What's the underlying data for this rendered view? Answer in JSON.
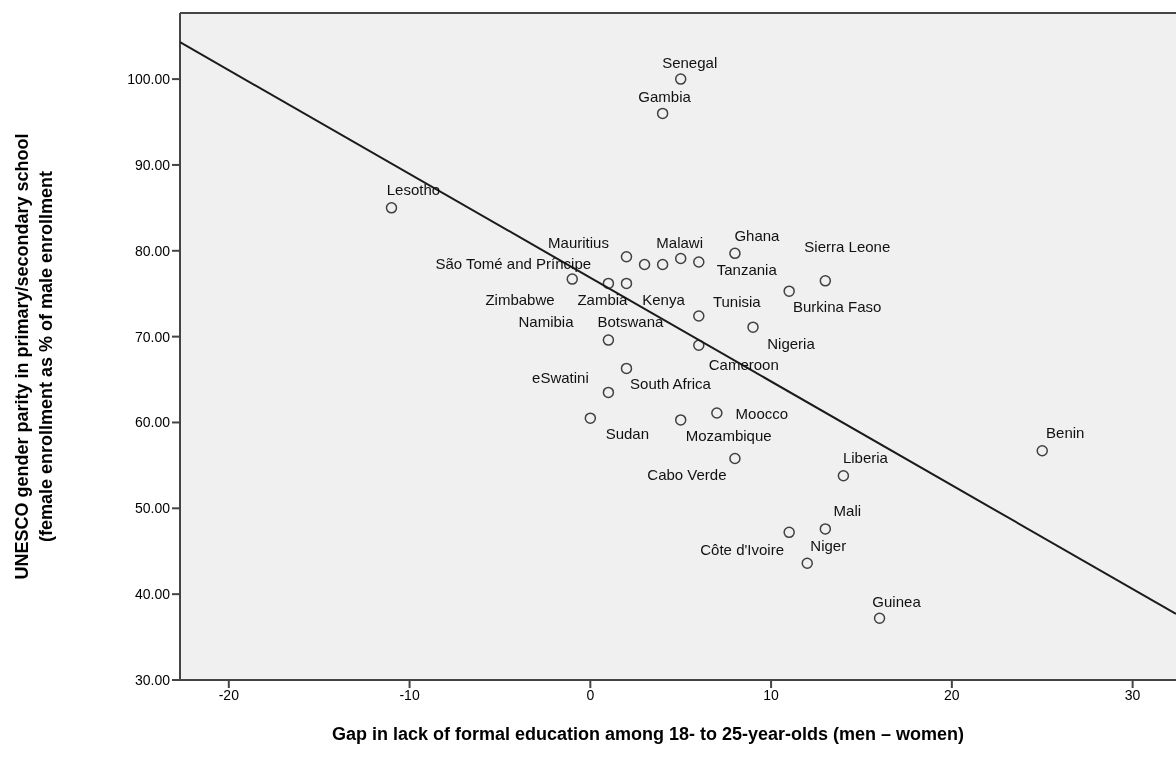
{
  "chart_data": {
    "type": "scatter",
    "xlabel": "Gap in lack of formal education among 18- to 25-year-olds (men – women)",
    "ylabel": "UNESCO gender parity in primary/secondary school\n(female enrollment as % of male enrollment",
    "xlim": [
      -22.7,
      32.4
    ],
    "ylim": [
      30,
      107.7
    ],
    "xticks": [
      -20,
      -10,
      0,
      10,
      20,
      30
    ],
    "yticks": [
      {
        "value": 30,
        "label": "30.00"
      },
      {
        "value": 40,
        "label": "40.00"
      },
      {
        "value": 50,
        "label": "50.00"
      },
      {
        "value": 60,
        "label": "60.00"
      },
      {
        "value": 70,
        "label": "70.00"
      },
      {
        "value": 80,
        "label": "80.00"
      },
      {
        "value": 90,
        "label": "90.00"
      },
      {
        "value": 100,
        "label": "100.00"
      }
    ],
    "series": [
      {
        "color": "#404040",
        "marker": "circle",
        "x": [
          5,
          4,
          -11,
          2,
          3,
          4,
          5,
          6,
          8,
          13,
          11,
          6,
          9,
          6,
          -1,
          1,
          2,
          1,
          2,
          1,
          0,
          5,
          7,
          8,
          14,
          13,
          11,
          12,
          16,
          25
        ],
        "values": [
          100,
          96,
          85,
          79.3,
          78.4,
          78.4,
          79.1,
          78.7,
          79.7,
          76.5,
          75.3,
          72.4,
          71.1,
          69,
          76.7,
          76.2,
          76.2,
          69.6,
          66.3,
          63.5,
          60.5,
          60.3,
          61.1,
          55.8,
          53.8,
          47.6,
          47.2,
          43.6,
          37.2,
          56.7
        ]
      },
      {
        "type": "line",
        "color": "#1a1a1a",
        "marker": "none",
        "x": [
          -22.7,
          32.4
        ],
        "values": [
          104.3,
          37.7
        ]
      }
    ],
    "annotations": [
      {
        "text": "Senegal",
        "x": 5,
        "y": 100
      },
      {
        "text": "Gambia",
        "x": 4,
        "y": 96
      },
      {
        "text": "Lesotho",
        "x": -11,
        "y": 85
      },
      {
        "text": "Mauritius",
        "x": 2,
        "y": 79.3
      },
      "Zimbabwe",
      "Namibia",
      {
        "text": "Malawi",
        "x": 5,
        "y": 79.1
      },
      {
        "text": "Tanzania",
        "x": 6,
        "y": 78.7
      },
      {
        "text": "Ghana",
        "x": 8,
        "y": 79.7
      },
      {
        "text": "Sierra Leone",
        "x": 13,
        "y": 76.5
      },
      {
        "text": "Burkina Faso",
        "x": 11,
        "y": 75.3
      },
      {
        "text": "Tunisia",
        "x": 6,
        "y": 72.4
      },
      {
        "text": "Nigeria",
        "x": 9,
        "y": 71.1
      },
      {
        "text": "Cameroon",
        "x": 6,
        "y": 69
      },
      {
        "text": "São Tomé and Príncipe",
        "x": -1,
        "y": 76.7
      },
      {
        "text": "Zambia",
        "x": 1,
        "y": 76.2
      },
      {
        "text": "Kenya",
        "x": 2,
        "y": 76.2
      },
      {
        "text": "Botswana",
        "x": 1,
        "y": 69.6
      },
      {
        "text": "South Africa",
        "x": 2,
        "y": 66.3
      },
      {
        "text": "eSwatini",
        "x": 1,
        "y": 63.5
      },
      {
        "text": "Sudan",
        "x": 0,
        "y": 60.5
      },
      {
        "text": "Mozambique",
        "x": 5,
        "y": 60.3
      },
      {
        "text": "Moocco",
        "x": 7,
        "y": 61.1
      },
      {
        "text": "Cabo Verde",
        "x": 8,
        "y": 55.8
      },
      {
        "text": "Liberia",
        "x": 14,
        "y": 53.8
      },
      {
        "text": "Mali",
        "x": 13,
        "y": 47.6
      },
      {
        "text": "Côte d'Ivoire",
        "x": 11,
        "y": 47.2
      },
      {
        "text": "Niger",
        "x": 12,
        "y": 43.6
      },
      {
        "text": "Guinea",
        "x": 16,
        "y": 37.2
      },
      {
        "text": "Benin",
        "x": 25,
        "y": 56.7
      }
    ]
  }
}
